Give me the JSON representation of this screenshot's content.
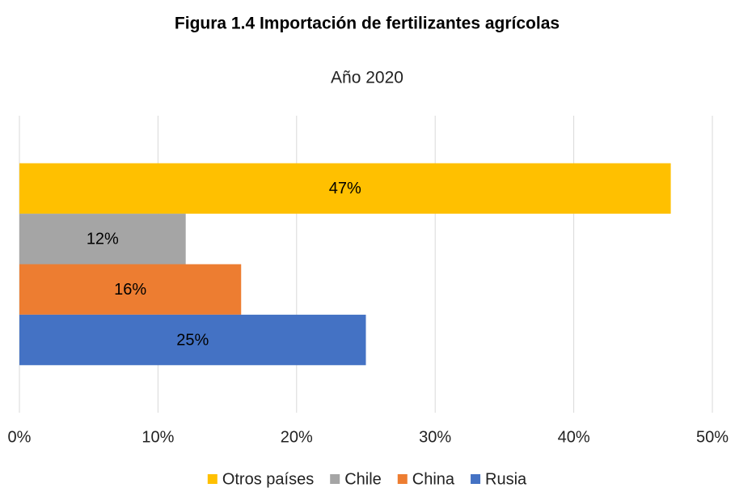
{
  "chart_data": {
    "type": "bar",
    "orientation": "horizontal",
    "title": "Figura 1.4 Importación de fertilizantes agrícolas",
    "subtitle": "Año 2020",
    "categories": [
      null
    ],
    "series": [
      {
        "name": "Otros países",
        "color": "#ffc000",
        "values": [
          47
        ],
        "value_labels": [
          "47%"
        ]
      },
      {
        "name": "Chile",
        "color": "#a5a5a5",
        "values": [
          12
        ],
        "value_labels": [
          "12%"
        ]
      },
      {
        "name": "China",
        "color": "#ed7d31",
        "values": [
          16
        ],
        "value_labels": [
          "16%"
        ]
      },
      {
        "name": "Rusia",
        "color": "#4472c4",
        "values": [
          25
        ],
        "value_labels": [
          "25%"
        ]
      }
    ],
    "xlim": [
      0,
      50
    ],
    "xticks": [
      {
        "value": 0,
        "label": "0%"
      },
      {
        "value": 10,
        "label": "10%"
      },
      {
        "value": 20,
        "label": "20%"
      },
      {
        "value": 30,
        "label": "30%"
      },
      {
        "value": 40,
        "label": "40%"
      },
      {
        "value": 50,
        "label": "50%"
      }
    ],
    "grid": true,
    "legend": "bottom"
  }
}
